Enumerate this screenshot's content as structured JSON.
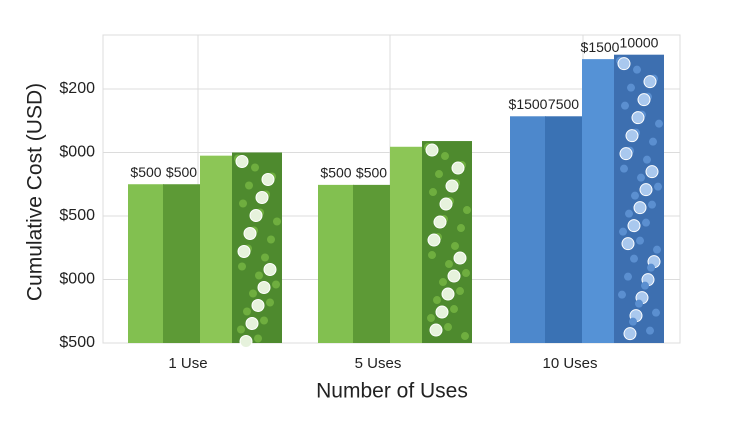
{
  "chart_data": {
    "type": "bar",
    "categories": [
      "1 Use",
      "5 Uses",
      "10 Uses"
    ],
    "xlabel": "Number of Uses",
    "ylabel": "Cumulative Cost (USD)",
    "ylim": [
      0,
      4.85
    ],
    "yticks": [
      {
        "value": 0,
        "label": "$500"
      },
      {
        "value": 1,
        "label": "$000"
      },
      {
        "value": 2,
        "label": "$500"
      },
      {
        "value": 3,
        "label": "$000"
      },
      {
        "value": 4,
        "label": "$200"
      }
    ],
    "grid": true,
    "series": [
      {
        "colors": [
          "#82c050",
          "#82c050",
          "#4d88cc"
        ],
        "values": [
          2.5,
          2.49,
          3.57
        ],
        "annotations": [
          "$500",
          "$500",
          "$1500"
        ]
      },
      {
        "colors": [
          "#5d9a36",
          "#5d9a36",
          "#3a72b4"
        ],
        "values": [
          2.5,
          2.49,
          3.57
        ],
        "annotations": [
          "$500",
          "$500",
          "7500"
        ]
      },
      {
        "colors": [
          "#8cc656",
          "#8cc656",
          "#5592d6"
        ],
        "values": [
          2.95,
          3.09,
          4.47
        ],
        "annotations": [
          null,
          null,
          "$1500"
        ]
      },
      {
        "colors": [
          "#4e8a2e",
          "#4e8a2e",
          "#3d6fb0"
        ],
        "values": [
          3.0,
          3.18,
          4.54
        ],
        "annotations": [
          null,
          null,
          "10000"
        ]
      }
    ]
  }
}
